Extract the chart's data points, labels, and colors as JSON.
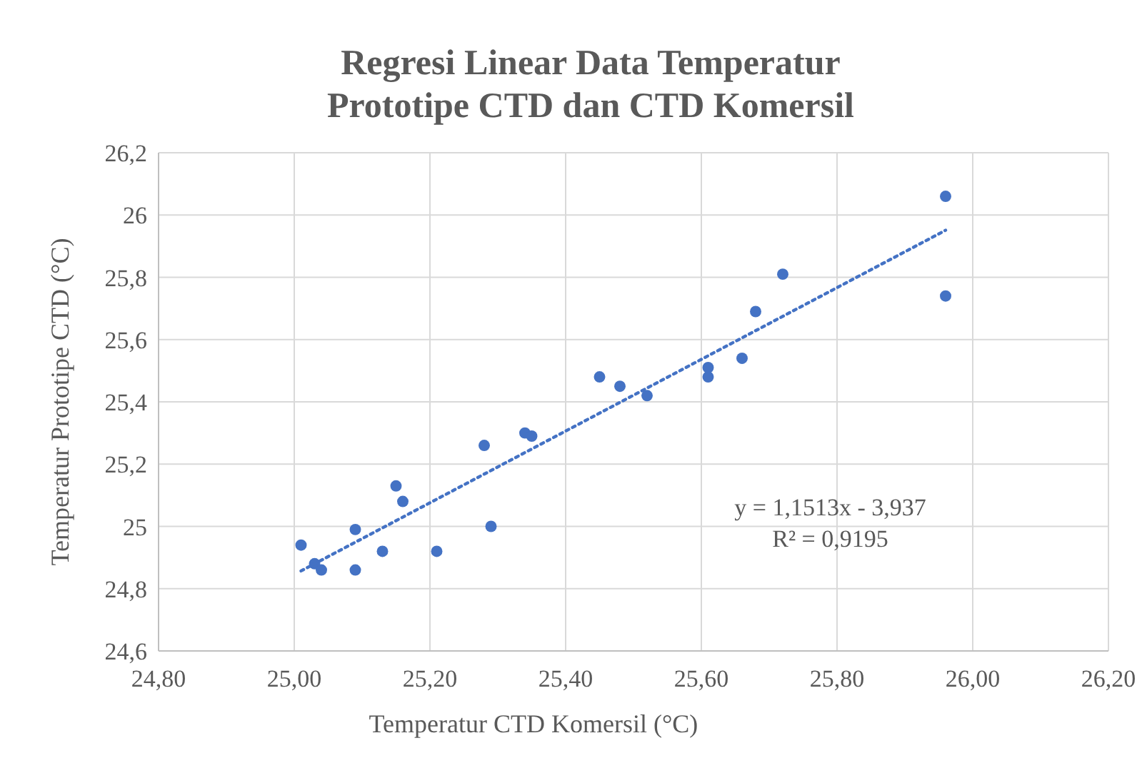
{
  "chart_data": {
    "type": "scatter",
    "title": "Regresi Linear Data Temperatur\nPrototipe CTD dan CTD Komersil",
    "xlabel": "Temperatur CTD Komersil (°C)",
    "ylabel": "Temperatur Prototipe CTD (°C)",
    "annotations": [
      "y = 1,1513x - 3,937\nR² = 0,9195"
    ],
    "xlim": [
      24.8,
      26.2
    ],
    "ylim": [
      24.6,
      26.2
    ],
    "xticks": [
      {
        "value": 24.8,
        "label": "24,80"
      },
      {
        "value": 25,
        "label": "25,00"
      },
      {
        "value": 25.2,
        "label": "25,20"
      },
      {
        "value": 25.4,
        "label": "25,40"
      },
      {
        "value": 25.6,
        "label": "25,60"
      },
      {
        "value": 25.8,
        "label": "25,80"
      },
      {
        "value": 26,
        "label": "26,00"
      },
      {
        "value": 26.2,
        "label": "26,20"
      }
    ],
    "yticks": [
      {
        "value": 24.6,
        "label": "24,6"
      },
      {
        "value": 24.8,
        "label": "24,8"
      },
      25,
      {
        "value": 25.2,
        "label": "25,2"
      },
      {
        "value": 25.4,
        "label": "25,4"
      },
      {
        "value": 25.6,
        "label": "25,6"
      },
      {
        "value": 25.8,
        "label": "25,8"
      },
      26,
      {
        "value": 26.2,
        "label": "26,2"
      }
    ],
    "grid": true,
    "series": [
      {
        "color": "#4472c4",
        "marker": "circle",
        "x": [
          25.01,
          25.03,
          25.04,
          25.09,
          25.09,
          25.13,
          25.15,
          25.16,
          25.21,
          25.28,
          25.29,
          25.34,
          25.35,
          25.45,
          25.48,
          25.52,
          25.61,
          25.61,
          25.66,
          25.68,
          25.72,
          25.96,
          25.96
        ],
        "values": [
          24.94,
          24.88,
          24.86,
          24.86,
          24.99,
          24.92,
          25.13,
          25.08,
          24.92,
          25.26,
          25.0,
          25.3,
          25.29,
          25.48,
          25.45,
          25.42,
          25.48,
          25.51,
          25.54,
          25.69,
          25.81,
          26.06,
          25.74
        ]
      },
      {
        "type": "line",
        "color": "#4472c4",
        "marker": "none",
        "line_style": "dotted",
        "x": [
          25.01,
          25.96
        ],
        "values": [
          24.857,
          25.951
        ]
      }
    ]
  }
}
